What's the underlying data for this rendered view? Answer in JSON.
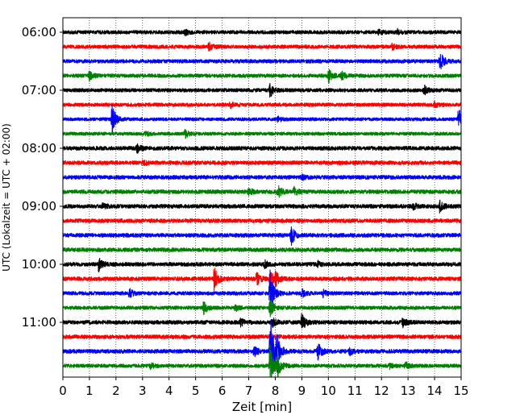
{
  "chart_data": {
    "type": "line",
    "subtype": "seismogram-helicorder",
    "xlabel": "Zeit  [min]",
    "ylabel": "UTC (Lokalzeit = UTC + 02:00)",
    "xlim": [
      0,
      15
    ],
    "x_ticks": [
      "0",
      "1",
      "2",
      "3",
      "4",
      "5",
      "6",
      "7",
      "8",
      "9",
      "10",
      "11",
      "12",
      "13",
      "14",
      "15"
    ],
    "y_tick_labels": [
      "06:00",
      "07:00",
      "08:00",
      "09:00",
      "10:00",
      "11:00"
    ],
    "grid": "vertical dotted",
    "color_cycle": [
      "#000000",
      "#ff0000",
      "#0000ff",
      "#008000"
    ],
    "traces": [
      {
        "start": "06:00",
        "noise": 2.2,
        "events": [
          {
            "t": 4.6,
            "amp": 3
          },
          {
            "t": 11.9,
            "amp": 3
          },
          {
            "t": 12.6,
            "amp": 3
          }
        ]
      },
      {
        "start": "06:15",
        "noise": 2.2,
        "events": [
          {
            "t": 5.5,
            "amp": 5
          },
          {
            "t": 12.4,
            "amp": 3
          }
        ]
      },
      {
        "start": "06:30",
        "noise": 2.2,
        "events": [
          {
            "t": 14.2,
            "amp": 13
          }
        ]
      },
      {
        "start": "06:45",
        "noise": 2.2,
        "events": [
          {
            "t": 1.0,
            "amp": 5
          },
          {
            "t": 10.0,
            "amp": 9
          },
          {
            "t": 10.5,
            "amp": 5
          }
        ]
      },
      {
        "start": "07:00",
        "noise": 2.2,
        "events": [
          {
            "t": 7.8,
            "amp": 8
          },
          {
            "t": 13.6,
            "amp": 6
          }
        ]
      },
      {
        "start": "07:15",
        "noise": 2.2,
        "events": [
          {
            "t": 6.3,
            "amp": 3
          },
          {
            "t": 14.0,
            "amp": 3
          }
        ]
      },
      {
        "start": "07:30",
        "noise": 2.0,
        "events": [
          {
            "t": 1.85,
            "amp": 18
          },
          {
            "t": 8.1,
            "amp": 3
          },
          {
            "t": 14.9,
            "amp": 14
          }
        ]
      },
      {
        "start": "07:45",
        "noise": 2.0,
        "events": [
          {
            "t": 3.1,
            "amp": 3
          },
          {
            "t": 4.6,
            "amp": 5
          }
        ]
      },
      {
        "start": "08:00",
        "noise": 2.4,
        "events": [
          {
            "t": 2.8,
            "amp": 5
          }
        ]
      },
      {
        "start": "08:15",
        "noise": 2.4,
        "events": [
          {
            "t": 3.0,
            "amp": 3
          }
        ]
      },
      {
        "start": "08:30",
        "noise": 2.4,
        "events": [
          {
            "t": 9.0,
            "amp": 3
          }
        ]
      },
      {
        "start": "08:45",
        "noise": 2.4,
        "events": [
          {
            "t": 7.0,
            "amp": 4
          },
          {
            "t": 8.1,
            "amp": 8
          },
          {
            "t": 8.7,
            "amp": 5
          }
        ]
      },
      {
        "start": "09:00",
        "noise": 2.4,
        "events": [
          {
            "t": 1.5,
            "amp": 3
          },
          {
            "t": 13.2,
            "amp": 4
          },
          {
            "t": 14.2,
            "amp": 7
          }
        ]
      },
      {
        "start": "09:15",
        "noise": 2.4,
        "events": []
      },
      {
        "start": "09:30",
        "noise": 2.4,
        "events": [
          {
            "t": 8.6,
            "amp": 12
          }
        ]
      },
      {
        "start": "09:45",
        "noise": 2.4,
        "events": []
      },
      {
        "start": "10:00",
        "noise": 2.4,
        "events": [
          {
            "t": 1.35,
            "amp": 8
          },
          {
            "t": 7.6,
            "amp": 4
          },
          {
            "t": 9.6,
            "amp": 3
          }
        ]
      },
      {
        "start": "10:15",
        "noise": 2.4,
        "events": [
          {
            "t": 5.7,
            "amp": 14
          },
          {
            "t": 7.3,
            "amp": 8
          },
          {
            "t": 7.8,
            "amp": 10
          },
          {
            "t": 8.0,
            "amp": 8
          }
        ]
      },
      {
        "start": "10:30",
        "noise": 2.2,
        "events": [
          {
            "t": 2.5,
            "amp": 5
          },
          {
            "t": 7.8,
            "amp": 30
          },
          {
            "t": 9.0,
            "amp": 5
          },
          {
            "t": 9.8,
            "amp": 4
          }
        ]
      },
      {
        "start": "10:45",
        "noise": 2.2,
        "events": [
          {
            "t": 5.3,
            "amp": 8
          },
          {
            "t": 6.5,
            "amp": 4
          },
          {
            "t": 7.8,
            "amp": 10
          }
        ]
      },
      {
        "start": "11:00",
        "noise": 2.4,
        "events": [
          {
            "t": 6.7,
            "amp": 4
          },
          {
            "t": 7.9,
            "amp": 5
          },
          {
            "t": 9.0,
            "amp": 11
          },
          {
            "t": 12.8,
            "amp": 5
          }
        ]
      },
      {
        "start": "11:15",
        "noise": 2.4,
        "events": [
          {
            "t": 7.8,
            "amp": 5
          }
        ]
      },
      {
        "start": "11:30",
        "noise": 2.4,
        "events": [
          {
            "t": 7.2,
            "amp": 6
          },
          {
            "t": 7.8,
            "amp": 50
          },
          {
            "t": 8.05,
            "amp": 20
          },
          {
            "t": 9.6,
            "amp": 12
          },
          {
            "t": 10.8,
            "amp": 4
          }
        ]
      },
      {
        "start": "11:45",
        "noise": 2.2,
        "events": [
          {
            "t": 3.3,
            "amp": 3
          },
          {
            "t": 7.8,
            "amp": 25
          },
          {
            "t": 8.1,
            "amp": 12
          },
          {
            "t": 12.3,
            "amp": 3
          },
          {
            "t": 12.9,
            "amp": 4
          }
        ]
      }
    ]
  }
}
